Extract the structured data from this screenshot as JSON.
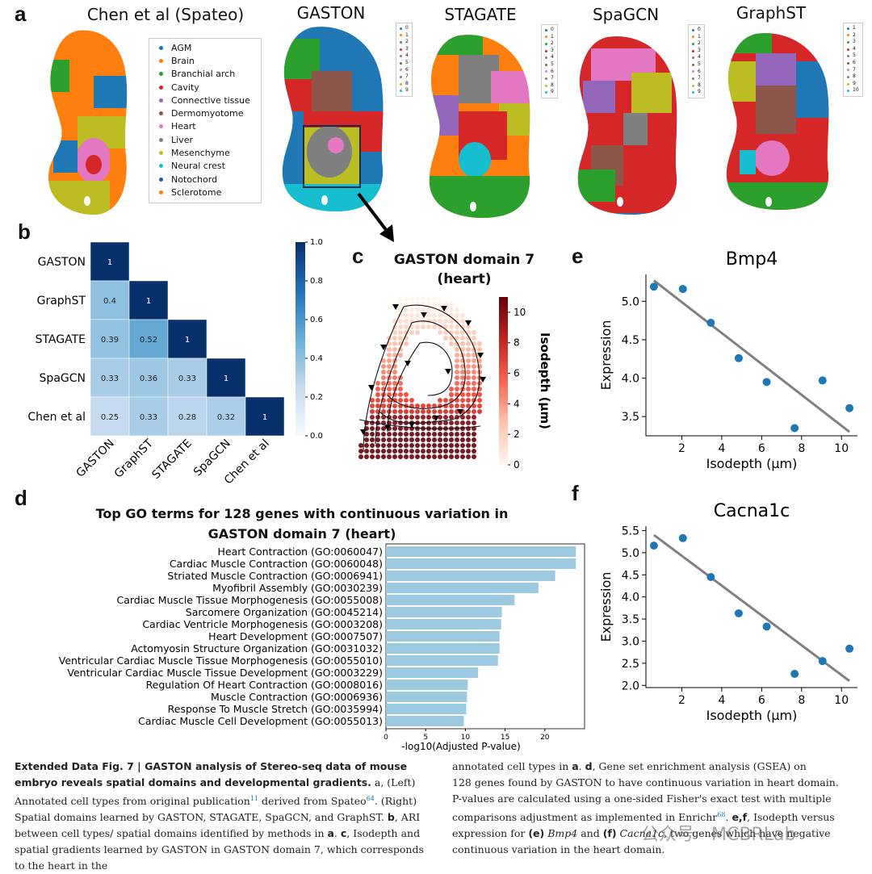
{
  "panels": {
    "a": "a",
    "b": "b",
    "c": "c",
    "d": "d",
    "e": "e",
    "f": "f"
  },
  "panel_a": {
    "titles": [
      "Chen et al (Spateo)",
      "GASTON",
      "STAGATE",
      "SpaGCN",
      "GraphST"
    ],
    "cell_types": [
      {
        "label": "AGM",
        "color": "#1f77b4"
      },
      {
        "label": "Brain",
        "color": "#ff7f0e"
      },
      {
        "label": "Branchial arch",
        "color": "#2ca02c"
      },
      {
        "label": "Cavity",
        "color": "#d62728"
      },
      {
        "label": "Connective tissue",
        "color": "#9467bd"
      },
      {
        "label": "Dermomyotome",
        "color": "#8c564b"
      },
      {
        "label": "Heart",
        "color": "#e377c2"
      },
      {
        "label": "Liver",
        "color": "#7f7f7f"
      },
      {
        "label": "Mesenchyme",
        "color": "#bcbd22"
      },
      {
        "label": "Neural crest",
        "color": "#17becf"
      },
      {
        "label": "Notochord",
        "color": "#1f5f9f"
      },
      {
        "label": "Sclerotome",
        "color": "#ff7f0e"
      }
    ],
    "domain_legend_0_9": [
      "0",
      "1",
      "2",
      "3",
      "4",
      "5",
      "6",
      "7",
      "8",
      "9"
    ],
    "domain_legend_1_10": [
      "1",
      "2",
      "3",
      "4",
      "5",
      "6",
      "7",
      "8",
      "9",
      "10"
    ],
    "domain_colors": [
      "#1f77b4",
      "#ff7f0e",
      "#2ca02c",
      "#d62728",
      "#9467bd",
      "#8c564b",
      "#e377c2",
      "#7f7f7f",
      "#bcbd22",
      "#17becf"
    ]
  },
  "chart_data": [
    {
      "type": "heatmap",
      "panel": "b",
      "rows": [
        "GASTON",
        "GraphST",
        "STAGATE",
        "SpaGCN",
        "Chen et al"
      ],
      "cols": [
        "GASTON",
        "GraphST",
        "STAGATE",
        "SpaGCN",
        "Chen et al"
      ],
      "values": [
        [
          1,
          null,
          null,
          null,
          null
        ],
        [
          0.4,
          1,
          null,
          null,
          null
        ],
        [
          0.39,
          0.52,
          1,
          null,
          null
        ],
        [
          0.33,
          0.36,
          0.33,
          1,
          null
        ],
        [
          0.25,
          0.33,
          0.28,
          0.32,
          1
        ]
      ],
      "value_labels": [
        [
          "1",
          "",
          "",
          "",
          ""
        ],
        [
          "0.4",
          "1",
          "",
          "",
          ""
        ],
        [
          "0.39",
          "0.52",
          "1",
          "",
          ""
        ],
        [
          "0.33",
          "0.36",
          "0.33",
          "1",
          ""
        ],
        [
          "0.25",
          "0.33",
          "0.28",
          "0.32",
          "1"
        ]
      ],
      "colorbar_ticks": [
        "1.0",
        "0.8",
        "0.6",
        "0.4",
        "0.2",
        "0.0"
      ],
      "range": [
        0,
        1
      ]
    },
    {
      "type": "scatter",
      "panel": "c",
      "title": "GASTON domain 7",
      "subtitle": "(heart)",
      "colorbar_label": "Isodepth (μm)",
      "colorbar_ticks": [
        "10",
        "8",
        "6",
        "4",
        "2",
        "0"
      ],
      "range": [
        0,
        11
      ]
    },
    {
      "type": "bar",
      "panel": "d",
      "title": "Top GO terms for 128 genes with continuous variation in",
      "subtitle": "GASTON domain 7 (heart)",
      "xlabel": "-log10(Adjusted P-value)",
      "xticks": [
        "0",
        "5",
        "10",
        "15",
        "20"
      ],
      "xlim": [
        0,
        25
      ],
      "categories": [
        "Heart Contraction (GO:0060047)",
        "Cardiac Muscle Contraction (GO:0060048)",
        "Striated Muscle Contraction (GO:0006941)",
        "Myofibril Assembly (GO:0030239)",
        "Cardiac Muscle Tissue Morphogenesis (GO:0055008)",
        "Sarcomere Organization (GO:0045214)",
        "Cardiac Ventricle Morphogenesis (GO:0003208)",
        "Heart Development (GO:0007507)",
        "Actomyosin Structure Organization (GO:0031032)",
        "Ventricular Cardiac Muscle Tissue Morphogenesis (GO:0055010)",
        "Ventricular Cardiac Muscle Tissue Development (GO:0003229)",
        "Regulation Of Heart Contraction (GO:0008016)",
        "Muscle Contraction (GO:0006936)",
        "Response To Muscle Stretch (GO:0035994)",
        "Cardiac Muscle Cell Development (GO:0055013)"
      ],
      "values": [
        23.9,
        23.9,
        21.3,
        19.2,
        16.2,
        14.6,
        14.5,
        14.3,
        14.3,
        14.1,
        11.6,
        10.3,
        10.2,
        10.1,
        9.8
      ],
      "color": "#9ecae1"
    },
    {
      "type": "scatter",
      "panel": "e",
      "title": "Bmp4",
      "xlabel": "Isodepth (μm)",
      "ylabel": "Expression",
      "xticks": [
        "2",
        "4",
        "6",
        "8",
        "10"
      ],
      "yticks": [
        "5.0",
        "4.5",
        "4.0",
        "3.5"
      ],
      "xlim": [
        0.2,
        10.8
      ],
      "ylim": [
        3.25,
        5.35
      ],
      "x": [
        0.6,
        2.05,
        3.45,
        4.85,
        6.25,
        7.65,
        9.05,
        10.4
      ],
      "y": [
        5.19,
        5.16,
        4.72,
        4.26,
        3.95,
        3.35,
        3.97,
        3.61
      ],
      "fit": [
        [
          0.6,
          5.27
        ],
        [
          10.4,
          3.3
        ]
      ],
      "point_color": "#1f77b4",
      "line_color": "#808080"
    },
    {
      "type": "scatter",
      "panel": "f",
      "title": "Cacna1c",
      "xlabel": "Isodepth (μm)",
      "ylabel": "Expression",
      "xticks": [
        "2",
        "4",
        "6",
        "8",
        "10"
      ],
      "yticks": [
        "5.5",
        "5.0",
        "4.5",
        "4.0",
        "3.5",
        "3.0",
        "2.5",
        "2.0"
      ],
      "xlim": [
        0.2,
        10.8
      ],
      "ylim": [
        1.95,
        5.6
      ],
      "x": [
        0.6,
        2.05,
        3.45,
        4.85,
        6.25,
        7.65,
        9.05,
        10.4
      ],
      "y": [
        5.16,
        5.33,
        4.45,
        3.63,
        3.33,
        2.26,
        2.55,
        2.83
      ],
      "fit": [
        [
          0.6,
          5.4
        ],
        [
          10.4,
          2.1
        ]
      ],
      "point_color": "#1f77b4",
      "line_color": "#808080"
    }
  ],
  "caption": {
    "fig_label": "Extended Data Fig. 7 | GASTON analysis of Stereo-seq data of mouse embryo reveals spatial domains and developmental gradients.",
    "left_lines": [
      "a, (Left) Annotated cell",
      "types from original publication",
      "11",
      " derived from Spateo",
      "64",
      ". (Right) Spatial domains",
      "learned by GASTON, STAGATE, SpaGCN, and GraphST.",
      "b",
      ", ARI between cell types/",
      "spatial domains identified by methods in",
      "a",
      ".",
      "c",
      ", Isodepth and spatial gradients",
      "learned by GASTON in GASTON domain 7, which corresponds to the heart in the"
    ],
    "right_lines": [
      "annotated cell types in",
      "a",
      ".",
      "d",
      ", Gene set enrichment analysis (GSEA) on",
      "128 genes found by GASTON to have continuous variation in heart domain.",
      "P-values are calculated using a one-sided Fisher's exact test with multiple",
      "comparisons adjustment as implemented in Enrichr",
      "68",
      ".",
      "e,f",
      ", Isodepth versus",
      "expression for",
      "(e)",
      "Bmp4",
      "and",
      "(f)",
      "Cacna1c",
      ", two genes which have negative",
      "continuous variation in the heart domain."
    ]
  },
  "watermark": "公众号 · MCBRLab"
}
